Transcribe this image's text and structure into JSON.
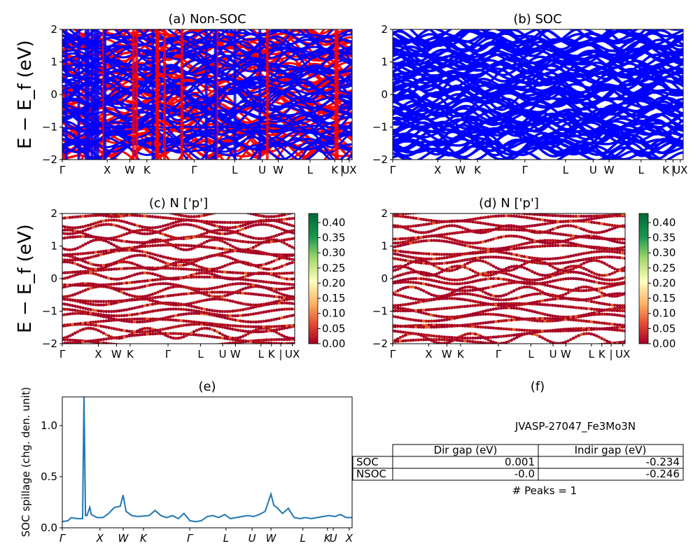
{
  "figure": {
    "panels": {
      "a": {
        "title": "(a) Non-SOC"
      },
      "b": {
        "title": "(b) SOC"
      },
      "c": {
        "title": "(c)  N ['p']"
      },
      "d": {
        "title": "(d) N ['p']"
      },
      "e": {
        "title": "(e)"
      },
      "f": {
        "title": "(f)"
      }
    },
    "band_ylabel": "E − E_f (eV)",
    "spillage_ylabel": "SOC spillage (chg. den. unit)",
    "colors": {
      "nonsoc_up": "#ff0000",
      "nonsoc_dn": "#0000ff",
      "soc": "#0000ff",
      "spillage_line": "#1f77b4"
    }
  },
  "chart_data": [
    {
      "type": "line",
      "id": "a",
      "title": "(a) Non-SOC",
      "ylabel": "E − E_f (eV)",
      "ylim": [
        -2,
        2
      ],
      "yticks": [
        "−2",
        "−1",
        "0",
        "1",
        "2"
      ],
      "xticks": [
        {
          "label": "Γ",
          "pos": 0.0
        },
        {
          "label": "X",
          "pos": 0.155
        },
        {
          "label": "W",
          "pos": 0.233
        },
        {
          "label": "K",
          "pos": 0.292
        },
        {
          "label": "Γ",
          "pos": 0.455
        },
        {
          "label": "L",
          "pos": 0.595
        },
        {
          "label": "U",
          "pos": 0.69
        },
        {
          "label": "W",
          "pos": 0.745
        },
        {
          "label": "L",
          "pos": 0.855
        },
        {
          "label": "K",
          "pos": 0.94
        },
        {
          "label": "|",
          "pos": 0.965
        },
        {
          "label": "UX",
          "pos": 0.99
        }
      ],
      "series": [
        {
          "values": [
            1.9,
            1.7,
            1.5,
            1.3,
            1.1,
            0.9,
            0.7,
            0.5,
            0.3,
            0.1,
            -0.1,
            -0.3,
            -0.5,
            -0.7,
            -0.9,
            -1.1,
            -1.3,
            -1.5,
            -1.7,
            -1.9
          ]
        },
        {
          "values": [
            1.8,
            1.6,
            1.4,
            1.2,
            1.0,
            0.8,
            0.6,
            0.4,
            0.2,
            0.0,
            -0.2,
            -0.4,
            -0.6,
            -0.8,
            -1.0,
            -1.2,
            -1.4,
            -1.6,
            -1.8
          ]
        }
      ]
    },
    {
      "type": "line",
      "id": "b",
      "title": "(b) SOC",
      "ylim": [
        -2,
        2
      ],
      "yticks": [
        "−2",
        "−1",
        "0",
        "1",
        "2"
      ],
      "xticks": [
        {
          "label": "Γ",
          "pos": 0.0
        },
        {
          "label": "X",
          "pos": 0.155
        },
        {
          "label": "W",
          "pos": 0.233
        },
        {
          "label": "K",
          "pos": 0.292
        },
        {
          "label": "Γ",
          "pos": 0.455
        },
        {
          "label": "L",
          "pos": 0.595
        },
        {
          "label": "U",
          "pos": 0.69
        },
        {
          "label": "W",
          "pos": 0.745
        },
        {
          "label": "L",
          "pos": 0.855
        },
        {
          "label": "K",
          "pos": 0.94
        },
        {
          "label": "|",
          "pos": 0.965
        },
        {
          "label": "UX",
          "pos": 0.99
        }
      ],
      "series": [
        {
          "values": [
            1.9,
            1.75,
            1.6,
            1.45,
            1.3,
            1.15,
            1.0,
            0.85,
            0.7,
            0.55,
            0.4,
            0.25,
            0.1,
            -0.05,
            -0.2,
            -0.35,
            -0.5,
            -0.65,
            -0.8,
            -0.95,
            -1.1,
            -1.25,
            -1.4,
            -1.55,
            -1.7,
            -1.85
          ]
        }
      ]
    },
    {
      "type": "scatter",
      "id": "c",
      "title": "(c)  N ['p']",
      "ylabel": "E − E_f (eV)",
      "ylim": [
        -2,
        2
      ],
      "yticks": [
        "−2",
        "−1",
        "0",
        "1",
        "2"
      ],
      "colorbar": {
        "ticks": [
          "0.00",
          "0.05",
          "0.10",
          "0.15",
          "0.20",
          "0.25",
          "0.30",
          "0.35",
          "0.40"
        ],
        "max": 0.43
      },
      "xticks": [
        {
          "label": "Γ",
          "pos": 0.0
        },
        {
          "label": "X",
          "pos": 0.155
        },
        {
          "label": "W",
          "pos": 0.233
        },
        {
          "label": "K",
          "pos": 0.292
        },
        {
          "label": "Γ",
          "pos": 0.455
        },
        {
          "label": "L",
          "pos": 0.595
        },
        {
          "label": "U",
          "pos": 0.69
        },
        {
          "label": "W",
          "pos": 0.745
        },
        {
          "label": "L",
          "pos": 0.855
        },
        {
          "label": "K",
          "pos": 0.9
        },
        {
          "label": "|",
          "pos": 0.94
        },
        {
          "label": "UX",
          "pos": 0.99
        }
      ]
    },
    {
      "type": "scatter",
      "id": "d",
      "title": "(d) N ['p']",
      "ylim": [
        -2,
        2
      ],
      "yticks": [
        "−2",
        "−1",
        "0",
        "1",
        "2"
      ],
      "colorbar": {
        "ticks": [
          "0.00",
          "0.05",
          "0.10",
          "0.15",
          "0.20",
          "0.25",
          "0.30",
          "0.35",
          "0.40"
        ],
        "max": 0.43
      },
      "xticks": [
        {
          "label": "Γ",
          "pos": 0.0
        },
        {
          "label": "X",
          "pos": 0.155
        },
        {
          "label": "W",
          "pos": 0.233
        },
        {
          "label": "K",
          "pos": 0.292
        },
        {
          "label": "Γ",
          "pos": 0.455
        },
        {
          "label": "L",
          "pos": 0.595
        },
        {
          "label": "U",
          "pos": 0.69
        },
        {
          "label": "W",
          "pos": 0.745
        },
        {
          "label": "L",
          "pos": 0.855
        },
        {
          "label": "K",
          "pos": 0.9
        },
        {
          "label": "|",
          "pos": 0.94
        },
        {
          "label": "UX",
          "pos": 0.99
        }
      ]
    },
    {
      "type": "line",
      "id": "e",
      "title": "(e)",
      "ylabel": "SOC spillage (chg. den. unit)",
      "ylim": [
        0.0,
        1.28
      ],
      "yticks": [
        "0.0",
        "0.5",
        "1.0"
      ],
      "xticks": [
        {
          "label": "Γ",
          "pos": 0.0
        },
        {
          "label": "X",
          "pos": 0.13
        },
        {
          "label": "W",
          "pos": 0.21
        },
        {
          "label": "K",
          "pos": 0.28
        },
        {
          "label": "Γ",
          "pos": 0.44
        },
        {
          "label": "L",
          "pos": 0.565
        },
        {
          "label": "U",
          "pos": 0.655
        },
        {
          "label": "W",
          "pos": 0.72
        },
        {
          "label": "L",
          "pos": 0.83
        },
        {
          "label": "K",
          "pos": 0.915
        },
        {
          "label": "U",
          "pos": 0.935
        },
        {
          "label": "X",
          "pos": 0.99
        }
      ],
      "x": [
        0.0,
        0.02,
        0.03,
        0.05,
        0.07,
        0.075,
        0.08,
        0.085,
        0.095,
        0.1,
        0.12,
        0.14,
        0.16,
        0.18,
        0.2,
        0.21,
        0.22,
        0.24,
        0.26,
        0.3,
        0.32,
        0.34,
        0.36,
        0.38,
        0.4,
        0.42,
        0.44,
        0.46,
        0.48,
        0.5,
        0.52,
        0.54,
        0.56,
        0.58,
        0.6,
        0.62,
        0.64,
        0.66,
        0.68,
        0.7,
        0.72,
        0.73,
        0.74,
        0.76,
        0.78,
        0.8,
        0.82,
        0.84,
        0.86,
        0.88,
        0.9,
        0.92,
        0.94,
        0.96,
        0.98,
        1.0
      ],
      "values": [
        0.06,
        0.07,
        0.1,
        0.09,
        0.09,
        1.3,
        0.12,
        0.12,
        0.2,
        0.13,
        0.1,
        0.1,
        0.14,
        0.2,
        0.21,
        0.32,
        0.16,
        0.12,
        0.11,
        0.12,
        0.17,
        0.12,
        0.1,
        0.12,
        0.09,
        0.14,
        0.07,
        0.06,
        0.07,
        0.11,
        0.12,
        0.1,
        0.13,
        0.09,
        0.1,
        0.11,
        0.12,
        0.11,
        0.13,
        0.16,
        0.33,
        0.22,
        0.2,
        0.14,
        0.19,
        0.1,
        0.09,
        0.1,
        0.09,
        0.1,
        0.11,
        0.12,
        0.11,
        0.13,
        0.1,
        0.1
      ],
      "color": "#1f77b4"
    }
  ],
  "table": {
    "title": "JVASP-27047_Fe3Mo3N",
    "columns": [
      "Dir gap (eV)",
      "Indir gap (eV)"
    ],
    "rows": [
      {
        "label": "SOC",
        "dir": "0.001",
        "indir": "-0.234"
      },
      {
        "label": "NSOC",
        "dir": "-0.0",
        "indir": "-0.246"
      }
    ],
    "peaks": "# Peaks = 1"
  }
}
